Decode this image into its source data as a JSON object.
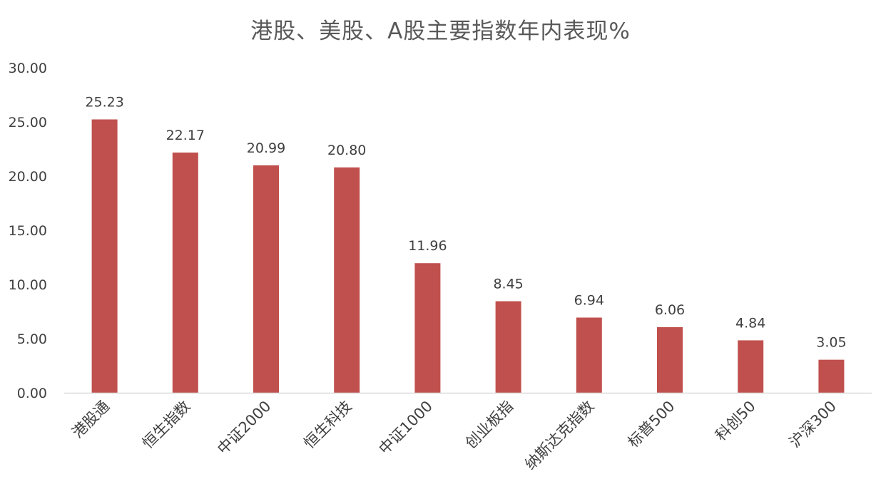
{
  "chart_data": {
    "type": "bar",
    "title": "港股、美股、A股主要指数年内表现%",
    "categories": [
      "港股通",
      "恒生指数",
      "中证2000",
      "恒生科技",
      "中证1000",
      "创业板指",
      "纳斯达克指数",
      "标普500",
      "科创50",
      "沪深300"
    ],
    "values": [
      25.23,
      22.17,
      20.99,
      20.8,
      11.96,
      8.45,
      6.94,
      6.06,
      4.84,
      3.05
    ],
    "value_labels": [
      "25.23",
      "22.17",
      "20.99",
      "20.80",
      "11.96",
      "8.45",
      "6.94",
      "6.06",
      "4.84",
      "3.05"
    ],
    "y_ticks": [
      "0.00",
      "5.00",
      "10.00",
      "15.00",
      "20.00",
      "25.00",
      "30.00"
    ],
    "ylim": [
      0,
      30
    ],
    "xlabel": "",
    "ylabel": "",
    "grid": false,
    "bar_color": "#C0504D",
    "axis_color": "#D9D9D9",
    "text_color": "#404040"
  }
}
